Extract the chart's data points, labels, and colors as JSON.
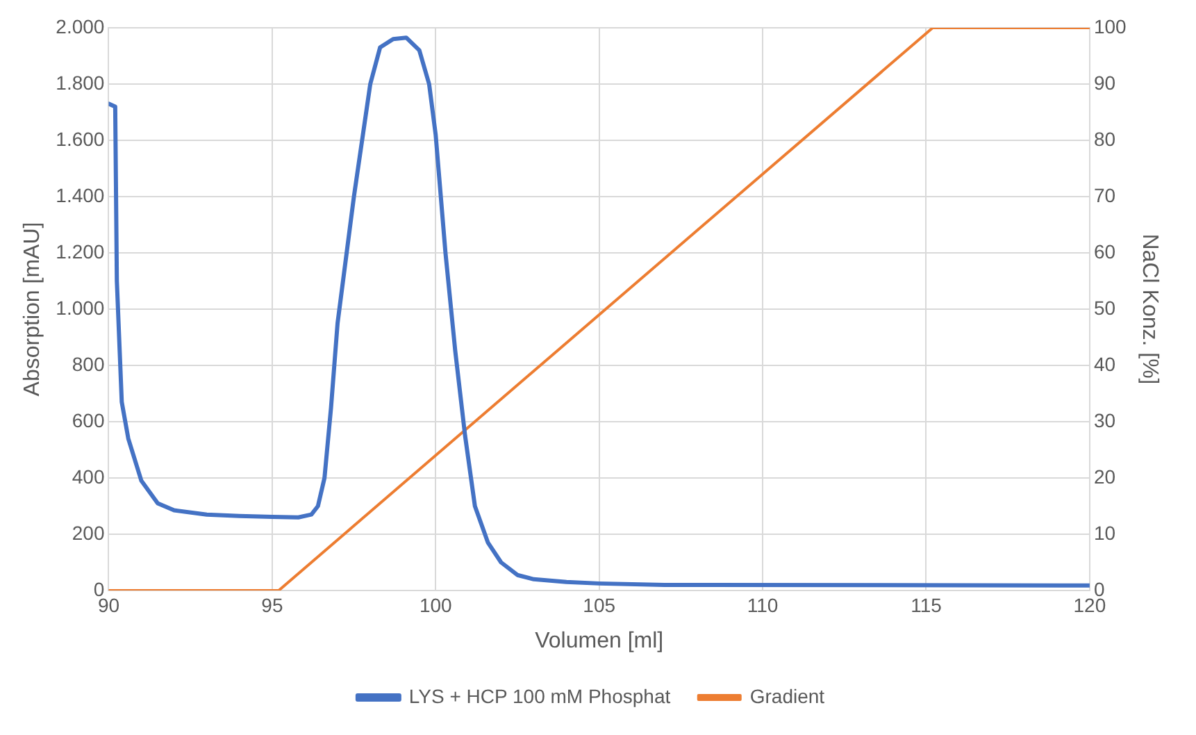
{
  "chart_data": {
    "type": "line",
    "xlabel": "Volumen [ml]",
    "ylabel": "Absorption [mAU]",
    "y2label": "NaCl Konz. [%]",
    "xlim": [
      90,
      120
    ],
    "xticks": [
      90,
      95,
      100,
      105,
      110,
      115,
      120
    ],
    "ylim": [
      0,
      2000
    ],
    "yticks": [
      0,
      200,
      400,
      600,
      800,
      {
        "value": 1000,
        "label": "1.000"
      },
      {
        "value": 1200,
        "label": "1.200"
      },
      {
        "value": 1400,
        "label": "1.400"
      },
      {
        "value": 1600,
        "label": "1.600"
      },
      {
        "value": 1800,
        "label": "1.800"
      },
      {
        "value": 2000,
        "label": "2.000"
      }
    ],
    "y2lim": [
      0,
      100
    ],
    "y2ticks": [
      0,
      10,
      20,
      30,
      40,
      50,
      60,
      70,
      80,
      90,
      100
    ],
    "grid": true,
    "legend": "bottom",
    "marker": "none",
    "line_style": "solid",
    "series": [
      {
        "name": "LYS + HCP 100 mM Phosphat",
        "color": "#4472c4",
        "x": [
          90,
          90.2,
          90.25,
          90.4,
          90.6,
          91,
          91.5,
          92,
          93,
          94,
          95,
          95.8,
          96.2,
          96.4,
          96.6,
          96.8,
          97,
          97.5,
          98,
          98.3,
          98.7,
          99.1,
          99.5,
          99.8,
          100,
          100.3,
          100.6,
          100.9,
          101.2,
          101.6,
          102,
          102.5,
          103,
          104,
          105,
          107,
          120
        ],
        "values": [
          1730,
          1720,
          1100,
          670,
          540,
          390,
          310,
          285,
          270,
          265,
          262,
          260,
          270,
          300,
          400,
          650,
          950,
          1400,
          1800,
          1930,
          1960,
          1965,
          1920,
          1800,
          1620,
          1200,
          850,
          550,
          300,
          170,
          100,
          55,
          40,
          30,
          25,
          20,
          18
        ]
      },
      {
        "name": "Gradient",
        "color": "#ed7d31",
        "axis": "y2",
        "x": [
          90,
          95.2,
          115.2,
          120
        ],
        "values": [
          0,
          0,
          100,
          100
        ]
      }
    ]
  }
}
